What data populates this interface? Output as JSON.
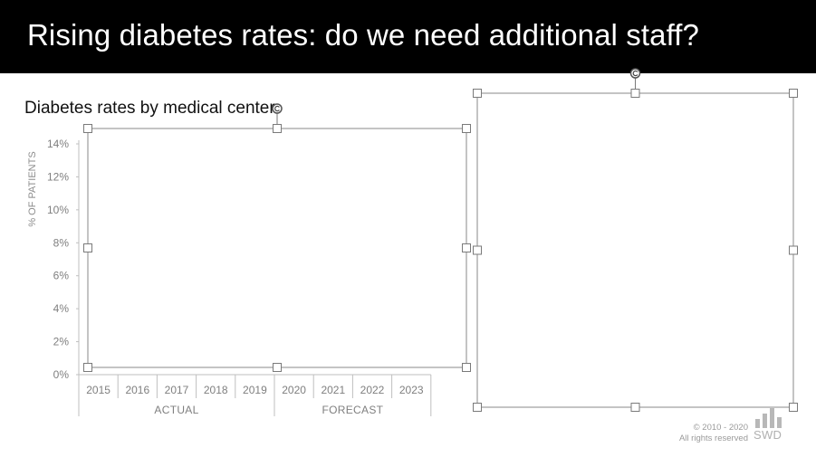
{
  "header": {
    "title": "Rising diabetes rates: do we need additional staff?"
  },
  "chart_data": {
    "type": "line",
    "title": "Diabetes rates by medical center",
    "ylabel": "% OF PATIENTS",
    "ylim": [
      0,
      14
    ],
    "yticks": [
      "0%",
      "2%",
      "4%",
      "6%",
      "8%",
      "10%",
      "12%",
      "14%"
    ],
    "categories": [
      "2015",
      "2016",
      "2017",
      "2018",
      "2019",
      "2020",
      "2021",
      "2022",
      "2023"
    ],
    "groups": [
      {
        "label": "ACTUAL",
        "span": 5
      },
      {
        "label": "FORECAST",
        "span": 4
      }
    ],
    "series": []
  },
  "footer": {
    "copyright": "© 2010 - 2020",
    "rights": "All rights reserved",
    "logo": "SWD"
  },
  "colors": {
    "header_bg": "#000000",
    "axis": "#bfbfbf",
    "tick_text": "#7f7f7f"
  }
}
